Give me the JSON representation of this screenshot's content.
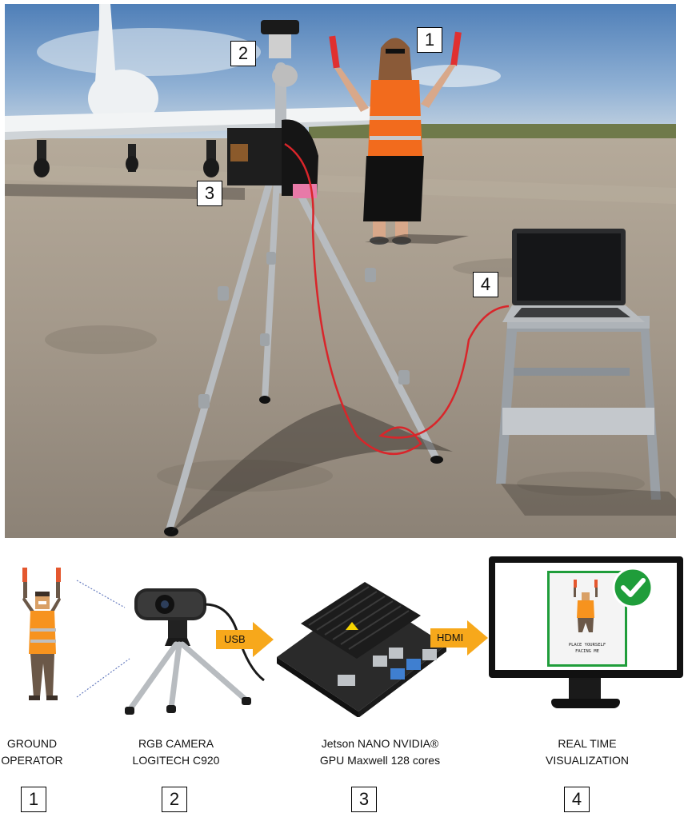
{
  "photo": {
    "markers": [
      "1",
      "2",
      "3",
      "4"
    ]
  },
  "diagram": {
    "components": [
      {
        "num": "1",
        "caption_line1": "GROUND",
        "caption_line2": "OPERATOR"
      },
      {
        "num": "2",
        "caption_line1": "RGB CAMERA",
        "caption_line2": "LOGITECH C920"
      },
      {
        "num": "3",
        "caption_line1": "Jetson NANO NVIDIA®",
        "caption_line2": "GPU Maxwell 128 cores"
      },
      {
        "num": "4",
        "caption_line1": "REAL TIME",
        "caption_line2": "VISUALIZATION"
      }
    ],
    "connections": [
      {
        "label": "USB"
      },
      {
        "label": "HDMI"
      }
    ],
    "screen_text_line1": "PLACE YOURSELF",
    "screen_text_line2": "FACING ME"
  },
  "colors": {
    "arrow": "#f7a81b",
    "check": "#1f9d3a",
    "vest": "#f26b1d",
    "cable": "#d9252a",
    "sky": "#7aa3cf",
    "tarmac": "#a49a8c"
  }
}
